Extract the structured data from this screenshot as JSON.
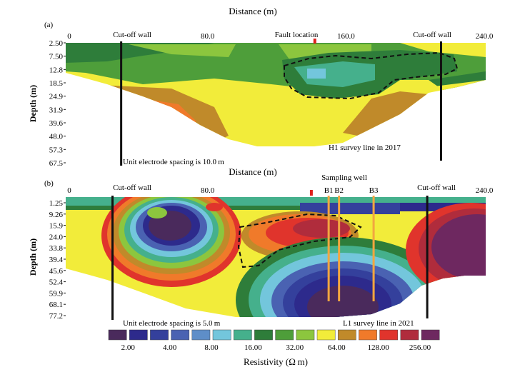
{
  "colors": {
    "scale": [
      "#4a2a5c",
      "#2d2a8c",
      "#34409c",
      "#4a62b2",
      "#5e8ec8",
      "#73c6dc",
      "#45b08c",
      "#2e7d3a",
      "#4e9e3a",
      "#8cc63e",
      "#f2ec3a",
      "#c08a2a",
      "#f07a2a",
      "#e0342c",
      "#b02c3c",
      "#6e2860"
    ],
    "wall": "#111111",
    "well": "#f2a640",
    "fault_marker": "#e0201c",
    "dash": "#111111"
  },
  "chart_data": [
    {
      "type": "heatmap",
      "panel_label": "(a)",
      "title": "Distance (m)",
      "ylabel": "Depth (m)",
      "x_ticks": [
        "0",
        "80.0",
        "160.0",
        "240.0"
      ],
      "x_tick_values": [
        0,
        80,
        160,
        240
      ],
      "xlim": [
        0,
        240
      ],
      "y_ticks": [
        "2.50",
        "7.50",
        "12.8",
        "18.5",
        "24.9",
        "31.9",
        "39.6",
        "48.0",
        "57.3",
        "67.5"
      ],
      "walls": [
        {
          "label": "Cut-off wall",
          "x": 30
        },
        {
          "label": "Cut-off wall",
          "x": 215
        }
      ],
      "fault": {
        "label": "Fault location",
        "x": 142
      },
      "annotations": [
        "Unit electrode spacing is 10.0 m",
        "H1 survey line in 2017"
      ]
    },
    {
      "type": "heatmap",
      "panel_label": "(b)",
      "title": "Distance (m)",
      "ylabel": "Depth (m)",
      "x_ticks": [
        "0",
        "80.0",
        "240.0"
      ],
      "x_tick_values": [
        0,
        80,
        240
      ],
      "xlim": [
        0,
        240
      ],
      "y_ticks": [
        "1.25",
        "9.26",
        "15.9",
        "24.0",
        "33.8",
        "39.4",
        "45.6",
        "52.4",
        "59.9",
        "68.1",
        "77.2"
      ],
      "walls": [
        {
          "label": "Cut-off wall",
          "x": 25
        },
        {
          "label": "Cut-off wall",
          "x": 207
        }
      ],
      "fault": {
        "x": 140
      },
      "sampling_well_label": "Sampling well",
      "wells": [
        {
          "label": "B1",
          "x": 150
        },
        {
          "label": "B2",
          "x": 156
        },
        {
          "label": "B3",
          "x": 176
        }
      ],
      "annotations": [
        "Unit electrode spacing is 5.0 m",
        "L1 survey line in 2021"
      ]
    }
  ],
  "colorbar": {
    "title": "Resistivity (Ω m)",
    "labels": [
      "2.00",
      "4.00",
      "8.00",
      "16.00",
      "32.00",
      "64.00",
      "128.00",
      "256.00"
    ]
  }
}
